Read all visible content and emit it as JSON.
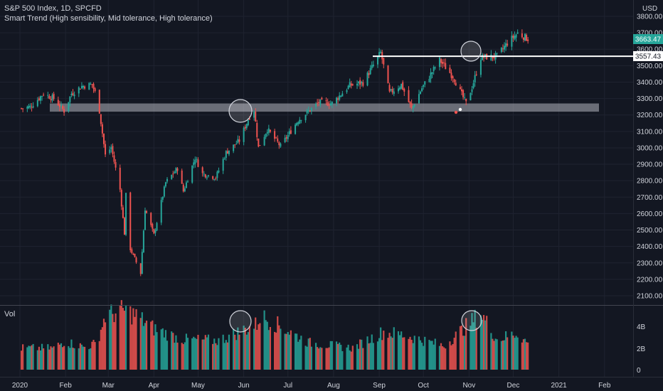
{
  "header": {
    "symbol_title": "S&P 500 Index, 1D, SPCFD",
    "indicator": "Smart Trend (High sensibility, Mid tolerance, High tolerance)"
  },
  "price_axis": {
    "currency": "USD",
    "ticks": [
      "3800.00",
      "3700.00",
      "3600.00",
      "3500.00",
      "3400.00",
      "3300.00",
      "3200.00",
      "3100.00",
      "3000.00",
      "2900.00",
      "2800.00",
      "2700.00",
      "2600.00",
      "2500.00",
      "2400.00",
      "2300.00",
      "2200.00",
      "2100.00"
    ],
    "current_price_label": "3663.47",
    "line_price_label": "3557.43"
  },
  "volume_pane": {
    "label": "Vol",
    "ticks": [
      "4B",
      "2B",
      "0"
    ]
  },
  "time_axis": {
    "labels": [
      "2020",
      "Feb",
      "Mar",
      "Apr",
      "May",
      "Jun",
      "Jul",
      "Aug",
      "Sep",
      "Oct",
      "Nov",
      "Dec",
      "2021",
      "Feb"
    ]
  },
  "colors": {
    "background": "#131722",
    "up": "#26a69a",
    "down": "#ef5350",
    "grid": "#1f2330",
    "text": "#d1d4dc",
    "support_zone": "#b2b5be",
    "resistance_line": "#ffffff",
    "price_badge_bg": "#26a69a"
  },
  "chart_data": [
    {
      "type": "candlestick",
      "title": "S&P 500 Index, 1D, SPCFD",
      "ylim": [
        2100,
        3800
      ],
      "support_zone": [
        3220,
        3270
      ],
      "resistance_level": 3557.43,
      "last_price": 3663.47,
      "anchors": [
        [
          "2020-01-02",
          3240
        ],
        [
          "2020-01-08",
          3250
        ],
        [
          "2020-01-17",
          3330
        ],
        [
          "2020-01-24",
          3300
        ],
        [
          "2020-01-31",
          3225
        ],
        [
          "2020-02-05",
          3330
        ],
        [
          "2020-02-12",
          3375
        ],
        [
          "2020-02-19",
          3386
        ],
        [
          "2020-02-21",
          3337
        ],
        [
          "2020-02-24",
          3225
        ],
        [
          "2020-02-28",
          2954
        ],
        [
          "2020-03-03",
          3003
        ],
        [
          "2020-03-09",
          2746
        ],
        [
          "2020-03-12",
          2480
        ],
        [
          "2020-03-13",
          2711
        ],
        [
          "2020-03-16",
          2386
        ],
        [
          "2020-03-20",
          2304
        ],
        [
          "2020-03-23",
          2237
        ],
        [
          "2020-03-26",
          2630
        ],
        [
          "2020-04-01",
          2470
        ],
        [
          "2020-04-09",
          2789
        ],
        [
          "2020-04-17",
          2875
        ],
        [
          "2020-04-21",
          2736
        ],
        [
          "2020-04-29",
          2939
        ],
        [
          "2020-05-04",
          2842
        ],
        [
          "2020-05-13",
          2820
        ],
        [
          "2020-05-20",
          2971
        ],
        [
          "2020-05-29",
          3044
        ],
        [
          "2020-06-05",
          3194
        ],
        [
          "2020-06-08",
          3232
        ],
        [
          "2020-06-11",
          3002
        ],
        [
          "2020-06-17",
          3113
        ],
        [
          "2020-06-26",
          3009
        ],
        [
          "2020-07-08",
          3169
        ],
        [
          "2020-07-22",
          3276
        ],
        [
          "2020-07-31",
          3271
        ],
        [
          "2020-08-12",
          3380
        ],
        [
          "2020-08-21",
          3397
        ],
        [
          "2020-09-02",
          3580
        ],
        [
          "2020-09-08",
          3332
        ],
        [
          "2020-09-16",
          3385
        ],
        [
          "2020-09-23",
          3237
        ],
        [
          "2020-09-30",
          3363
        ],
        [
          "2020-10-12",
          3534
        ],
        [
          "2020-10-21",
          3435
        ],
        [
          "2020-10-30",
          3270
        ],
        [
          "2020-11-03",
          3369
        ],
        [
          "2020-11-09",
          3550
        ],
        [
          "2020-11-20",
          3557
        ],
        [
          "2020-11-27",
          3638
        ],
        [
          "2020-12-04",
          3699
        ],
        [
          "2020-12-10",
          3668
        ],
        [
          "2020-12-11",
          3663
        ]
      ]
    },
    {
      "type": "bar",
      "title": "Vol",
      "ylim": [
        0,
        5.5
      ],
      "unit": "B",
      "anchors": [
        [
          "2020-01-02",
          2.0
        ],
        [
          "2020-01-24",
          2.0
        ],
        [
          "2020-01-31",
          2.6
        ],
        [
          "2020-02-14",
          2.1
        ],
        [
          "2020-02-21",
          2.4
        ],
        [
          "2020-02-24",
          3.3
        ],
        [
          "2020-02-28",
          5.0
        ],
        [
          "2020-03-12",
          5.5
        ],
        [
          "2020-03-20",
          5.0
        ],
        [
          "2020-04-01",
          3.8
        ],
        [
          "2020-04-20",
          2.8
        ],
        [
          "2020-05-15",
          2.7
        ],
        [
          "2020-06-10",
          4.2
        ],
        [
          "2020-06-12",
          5.0
        ],
        [
          "2020-06-26",
          4.0
        ],
        [
          "2020-07-15",
          2.5
        ],
        [
          "2020-08-14",
          2.0
        ],
        [
          "2020-09-04",
          3.5
        ],
        [
          "2020-09-18",
          3.2
        ],
        [
          "2020-10-15",
          2.2
        ],
        [
          "2020-11-09",
          5.2
        ],
        [
          "2020-11-20",
          2.8
        ],
        [
          "2020-12-04",
          3.4
        ],
        [
          "2020-12-11",
          2.4
        ]
      ]
    }
  ]
}
